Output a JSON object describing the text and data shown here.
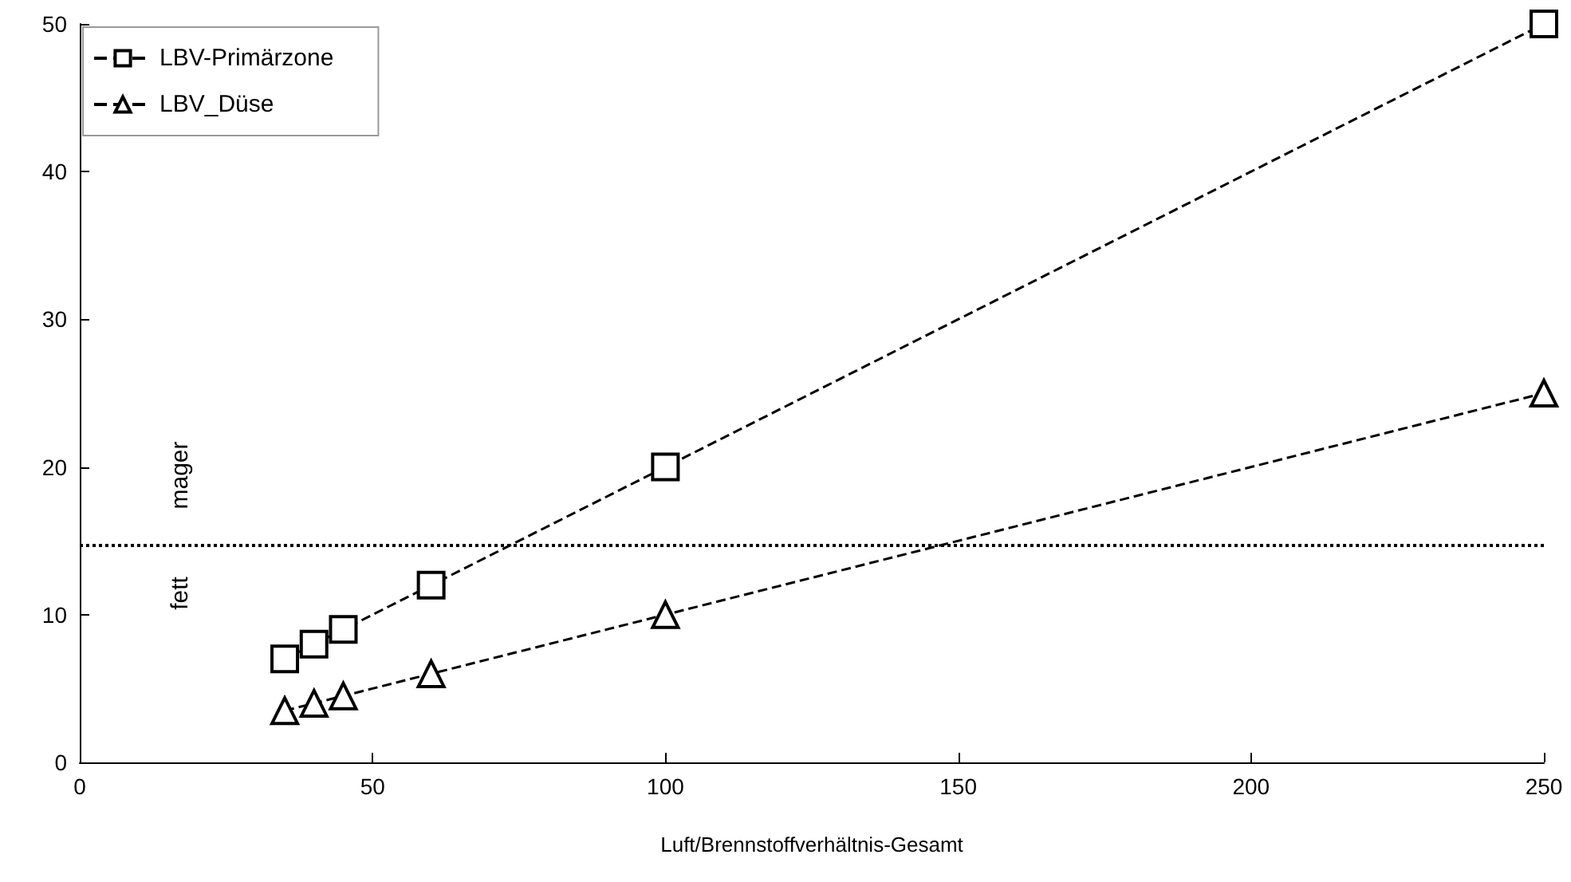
{
  "chart_data": {
    "type": "line",
    "xlabel": "Luft/Brennstoffverhältnis-Gesamt",
    "xlim": [
      0,
      250
    ],
    "xticks": [
      0,
      50,
      100,
      150,
      200,
      250
    ],
    "ylim": [
      0,
      50
    ],
    "yticks": [
      0,
      10,
      20,
      30,
      40,
      50
    ],
    "grid": false,
    "legend": "top left",
    "line_style": "dashed",
    "series": [
      {
        "name": "LBV-Primärzone",
        "color": "#000000",
        "marker": "square",
        "x": [
          35,
          40,
          45,
          60,
          100,
          250
        ],
        "values": [
          7,
          8,
          9,
          12,
          20,
          50
        ]
      },
      {
        "name": "LBV_Düse",
        "color": "#000000",
        "marker": "triangle",
        "x": [
          35,
          40,
          45,
          60,
          100,
          250
        ],
        "values": [
          3.5,
          4,
          4.5,
          6,
          10,
          25
        ]
      }
    ],
    "ref_lines": [
      {
        "axis": "y",
        "value": 14.7,
        "line_style": "dotted",
        "color": "#000000"
      }
    ],
    "annotations": [
      "mager",
      "fett"
    ]
  }
}
